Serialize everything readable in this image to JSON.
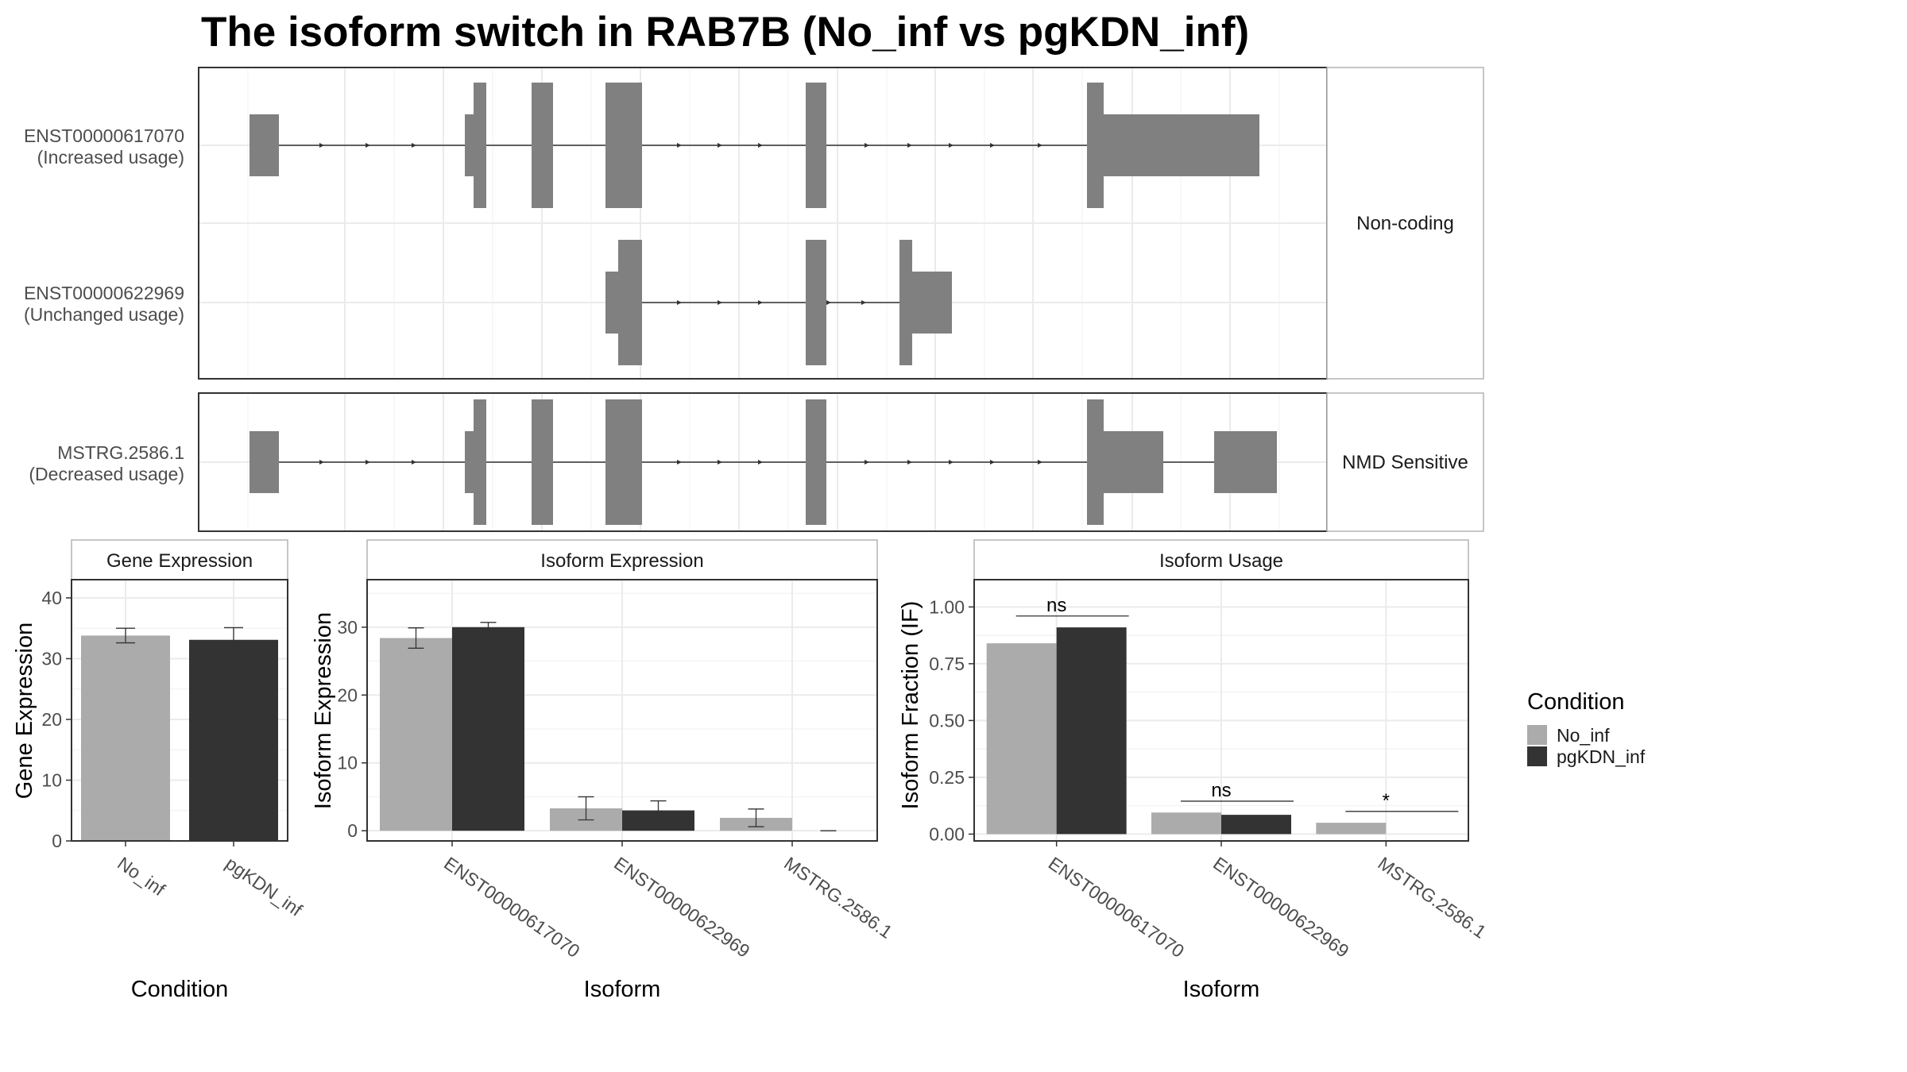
{
  "title": "The isoform switch in RAB7B (No_inf vs pgKDN_inf)",
  "colors": {
    "No_inf": "#ababab",
    "pgKDN_inf": "#333333",
    "exon": "#808080",
    "grid": "#ebebeb",
    "strip_border": "#b3b3b3",
    "panel_border": "#333333",
    "text": "#4d4d4d"
  },
  "icons": [
    "intron-direction-arrow-icon",
    "legend-swatch-no-inf",
    "legend-swatch-pgkdn-inf"
  ],
  "transcript_panels": [
    {
      "strip": "Non-coding",
      "transcripts": [
        {
          "id": "ENST00000617070",
          "usage": "(Increased usage)"
        },
        {
          "id": "ENST00000622969",
          "usage": "(Unchanged usage)"
        }
      ]
    },
    {
      "strip": "NMD Sensitive",
      "transcripts": [
        {
          "id": "MSTRG.2586.1",
          "usage": "(Decreased usage)"
        }
      ]
    }
  ],
  "legend": {
    "title": "Condition",
    "items": [
      "No_inf",
      "pgKDN_inf"
    ]
  },
  "chart_data": [
    {
      "type": "bar",
      "strip": "Gene Expression",
      "xlabel": "Condition",
      "ylabel": "Gene Expression",
      "categories": [
        "No_inf",
        "pgKDN_inf"
      ],
      "values": [
        33.8,
        33.1
      ],
      "errors": [
        [
          32.6,
          35.0
        ],
        [
          31.1,
          35.1
        ]
      ],
      "ylim": [
        0,
        43
      ],
      "yticks": [
        "0",
        "10",
        "20",
        "30",
        "40"
      ],
      "grid": true
    },
    {
      "type": "bar",
      "strip": "Isoform Expression",
      "xlabel": "Isoform",
      "ylabel": "Isoform Expression",
      "categories": [
        "ENST00000617070",
        "ENST00000622969",
        "MSTRG.2586.1"
      ],
      "series": [
        {
          "name": "No_inf",
          "values": [
            28.4,
            3.3,
            1.9
          ],
          "errors": [
            [
              26.9,
              29.9
            ],
            [
              1.6,
              5.0
            ],
            [
              0.6,
              3.2
            ]
          ]
        },
        {
          "name": "pgKDN_inf",
          "values": [
            30.0,
            3.0,
            0.0
          ],
          "errors": [
            [
              29.3,
              30.7
            ],
            [
              1.6,
              4.4
            ],
            [
              0.0,
              0.0
            ]
          ]
        }
      ],
      "ylim": [
        -1.5,
        37
      ],
      "yticks": [
        "0",
        "10",
        "20",
        "30"
      ],
      "grid": true
    },
    {
      "type": "bar",
      "strip": "Isoform Usage",
      "xlabel": "Isoform",
      "ylabel": "Isoform Fraction (IF)",
      "categories": [
        "ENST00000617070",
        "ENST00000622969",
        "MSTRG.2586.1"
      ],
      "series": [
        {
          "name": "No_inf",
          "values": [
            0.84,
            0.095,
            0.05
          ]
        },
        {
          "name": "pgKDN_inf",
          "values": [
            0.91,
            0.085,
            0.0
          ]
        }
      ],
      "significance": [
        "ns",
        "ns",
        "*"
      ],
      "ylim": [
        -0.03,
        1.12
      ],
      "yticks": [
        "0.00",
        "0.25",
        "0.50",
        "0.75",
        "1.00"
      ],
      "grid": true
    }
  ]
}
